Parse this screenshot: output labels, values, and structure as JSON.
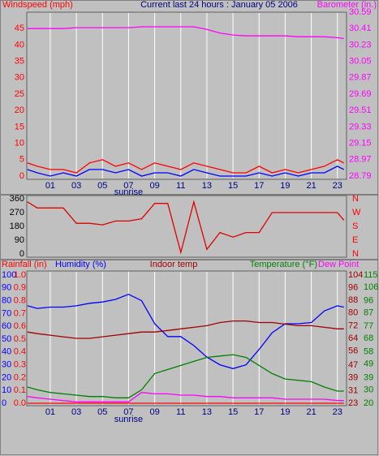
{
  "chart_data": [
    {
      "type": "line",
      "title": "Current last 24 hours : January 05 2006",
      "y_label": "Windspeed (mph)",
      "y2_label": "Barometer (in.)",
      "x": [
        -0.75,
        0,
        1,
        2,
        3,
        4,
        5,
        6,
        7,
        8,
        9,
        10,
        11,
        12,
        13,
        14,
        15,
        16,
        17,
        18,
        19,
        20,
        21,
        22,
        23,
        23.5
      ],
      "xlim": [
        -0.8,
        23.7
      ],
      "xticks": [
        {
          "value": 1,
          "label": "01"
        },
        {
          "value": 3,
          "label": "03"
        },
        {
          "value": 5,
          "label": "05"
        },
        {
          "value": 7,
          "label": "07"
        },
        {
          "value": 9,
          "label": "09"
        },
        {
          "value": 11,
          "label": "11"
        },
        {
          "value": 13,
          "label": "13"
        },
        {
          "value": 15,
          "label": "15"
        },
        {
          "value": 17,
          "label": "17"
        },
        {
          "value": 19,
          "label": "19"
        },
        {
          "value": 21,
          "label": "21"
        },
        {
          "value": 23,
          "label": "23"
        }
      ],
      "ylim": [
        0,
        50
      ],
      "yticks": [
        0,
        5,
        10,
        15,
        20,
        25,
        30,
        35,
        40,
        45
      ],
      "y2lim": [
        28.79,
        30.59
      ],
      "y2ticks": [
        28.79,
        28.97,
        29.15,
        29.33,
        29.51,
        29.69,
        29.87,
        30.05,
        30.23,
        30.41,
        30.59
      ],
      "axis_colors": {
        "y": "#ff0000",
        "y2": "#ff00ff"
      },
      "grid": true,
      "annotation": {
        "text": "sunrise",
        "x": 7
      },
      "series": [
        {
          "color": "#ff0000",
          "axis": "y",
          "values": [
            4,
            3,
            2,
            2,
            1,
            4,
            5,
            3,
            4,
            2,
            4,
            3,
            2,
            4,
            3,
            2,
            1,
            1,
            3,
            1,
            2,
            1,
            2,
            3,
            5,
            4
          ]
        },
        {
          "color": "#0000ff",
          "axis": "y",
          "values": [
            2,
            1,
            0,
            1,
            0,
            2,
            2,
            1,
            2,
            0,
            1,
            1,
            0,
            2,
            1,
            0,
            0,
            0,
            1,
            0,
            1,
            0,
            1,
            1,
            3,
            2
          ]
        },
        {
          "color": "#ff00ff",
          "axis": "y2",
          "values": [
            30.41,
            30.41,
            30.41,
            30.41,
            30.42,
            30.42,
            30.42,
            30.42,
            30.42,
            30.43,
            30.43,
            30.43,
            30.43,
            30.43,
            30.4,
            30.36,
            30.34,
            30.33,
            30.33,
            30.33,
            30.33,
            30.32,
            30.32,
            30.32,
            30.31,
            30.3
          ]
        }
      ]
    },
    {
      "type": "line",
      "x": [
        -0.75,
        0,
        1,
        2,
        3,
        4,
        5,
        6,
        7,
        8,
        9,
        10,
        11,
        12,
        13,
        14,
        15,
        16,
        17,
        18,
        19,
        20,
        21,
        22,
        23,
        23.5
      ],
      "xlim": [
        -0.8,
        23.7
      ],
      "ylim": [
        0,
        360
      ],
      "yticks": [
        0,
        90,
        180,
        270,
        360
      ],
      "y2lim": [
        0,
        360
      ],
      "y2ticks": [
        {
          "value": 0,
          "label": "N"
        },
        {
          "value": 90,
          "label": "E"
        },
        {
          "value": 180,
          "label": "S"
        },
        {
          "value": 270,
          "label": "W"
        },
        {
          "value": 360,
          "label": "N"
        }
      ],
      "axis_colors": {
        "y": "#000000",
        "y2": "#ff0000"
      },
      "grid": false,
      "series": [
        {
          "color": "#e00000",
          "axis": "y",
          "values": [
            340,
            300,
            300,
            300,
            200,
            200,
            190,
            215,
            215,
            230,
            330,
            330,
            10,
            340,
            30,
            140,
            110,
            140,
            140,
            270,
            270,
            270,
            270,
            270,
            270,
            220
          ]
        }
      ]
    },
    {
      "type": "line",
      "x": [
        -0.75,
        0,
        1,
        2,
        3,
        4,
        5,
        6,
        7,
        8,
        9,
        10,
        11,
        12,
        13,
        14,
        15,
        16,
        17,
        18,
        19,
        20,
        21,
        22,
        23,
        23.5
      ],
      "xlim": [
        -0.8,
        23.7
      ],
      "xticks": [
        {
          "value": 1,
          "label": "01"
        },
        {
          "value": 3,
          "label": "03"
        },
        {
          "value": 5,
          "label": "05"
        },
        {
          "value": 7,
          "label": "07"
        },
        {
          "value": 9,
          "label": "09"
        },
        {
          "value": 11,
          "label": "11"
        },
        {
          "value": 13,
          "label": "13"
        },
        {
          "value": 15,
          "label": "15"
        },
        {
          "value": 17,
          "label": "17"
        },
        {
          "value": 19,
          "label": "19"
        },
        {
          "value": 21,
          "label": "21"
        },
        {
          "value": 23,
          "label": "23"
        }
      ],
      "ylim": [
        0,
        1
      ],
      "yticks": [
        {
          "value": 0,
          "label": "0.0"
        },
        0.1,
        0.2,
        0.3,
        0.4,
        0.5,
        0.6,
        0.7,
        0.8,
        0.9,
        {
          "value": 1,
          "label": "1.0"
        }
      ],
      "y2lim": [
        23,
        104
      ],
      "y2ticks": [
        23,
        31,
        39,
        47,
        56,
        64,
        72,
        80,
        88,
        96,
        104
      ],
      "y3lim": [
        0,
        100
      ],
      "y3ticks": [
        0,
        10,
        20,
        30,
        40,
        50,
        60,
        70,
        80,
        90,
        100
      ],
      "y4lim": [
        20,
        115
      ],
      "y4ticks": [
        20,
        30,
        39,
        49,
        58,
        68,
        77,
        87,
        96,
        106,
        115
      ],
      "axis_colors": {
        "y": "#ff0000",
        "y2": "#a00000",
        "y3": "#0000ff",
        "y4": "#008000"
      },
      "grid": true,
      "annotation": {
        "text": "sunrise",
        "x": 7
      },
      "series": [
        {
          "name": "Rainfall (in)",
          "color": "#ff0000",
          "axis": "y",
          "values": [
            0,
            0,
            0,
            0,
            0,
            0,
            0,
            0,
            0,
            0,
            0,
            0,
            0,
            0,
            0,
            0,
            0,
            0,
            0,
            0,
            0,
            0,
            0,
            0,
            0,
            0
          ]
        },
        {
          "name": "Humidity (%)",
          "color": "#0000ff",
          "axis": "y3",
          "values": [
            76,
            74,
            75,
            75,
            76,
            78,
            79,
            81,
            85,
            80,
            62,
            52,
            52,
            45,
            36,
            30,
            27,
            30,
            42,
            55,
            62,
            62,
            63,
            72,
            76,
            75
          ]
        },
        {
          "name": "Indoor temp",
          "color": "#a00000",
          "axis": "y2",
          "values": [
            68,
            67,
            66,
            65,
            64,
            64,
            65,
            66,
            67,
            68,
            68,
            69,
            70,
            71,
            72,
            74,
            75,
            75,
            74,
            74,
            73,
            72,
            72,
            71,
            70,
            70
          ]
        },
        {
          "name": "Temperature (°F)",
          "color": "#008000",
          "axis": "y4",
          "values": [
            32,
            30,
            28,
            27,
            26,
            25,
            25,
            24,
            24,
            30,
            42,
            45,
            48,
            51,
            54,
            55,
            56,
            54,
            48,
            42,
            38,
            37,
            36,
            32,
            29,
            29
          ]
        },
        {
          "name": "Dew Point",
          "color": "#ff00ff",
          "axis": "y4",
          "values": [
            25,
            24,
            23,
            22,
            21,
            21,
            21,
            21,
            21,
            28,
            27,
            27,
            26,
            26,
            25,
            25,
            24,
            24,
            24,
            24,
            23,
            23,
            23,
            23,
            22,
            22
          ]
        }
      ]
    }
  ]
}
